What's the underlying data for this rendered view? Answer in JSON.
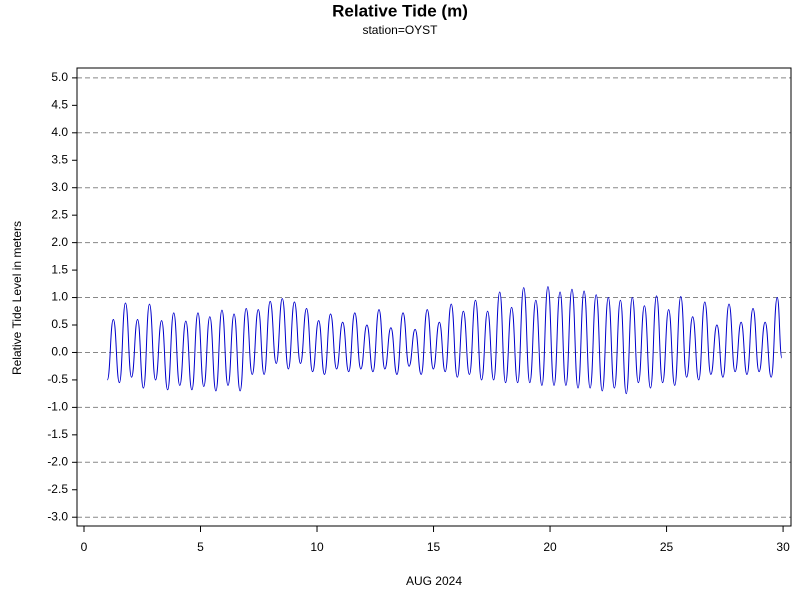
{
  "chart_data": {
    "type": "line",
    "title": "Relative Tide (m)",
    "subtitle": "station=OYST",
    "x_label": "AUG 2024",
    "y_label": "Relative Tide Level in meters",
    "xlim": [
      -0.3,
      30.34
    ],
    "xticks": [
      0,
      5,
      10,
      15,
      20,
      25,
      30
    ],
    "ylim": [
      -3.16,
      5.18
    ],
    "yticks": [
      {
        "value": 5,
        "label": "5.0"
      },
      4.5,
      {
        "value": 4,
        "label": "4.0"
      },
      3.5,
      {
        "value": 3,
        "label": "3.0"
      },
      2.5,
      {
        "value": 2,
        "label": "2.0"
      },
      1.5,
      {
        "value": 1,
        "label": "1.0"
      },
      0.5,
      {
        "value": 0,
        "label": "0.0"
      },
      -0.5,
      {
        "value": -1,
        "label": "-1.0"
      },
      -1.5,
      {
        "value": -2,
        "label": "-2.0"
      },
      -2.5,
      {
        "value": -3,
        "label": "-3.0"
      }
    ],
    "grid": true,
    "series": [
      {
        "name": "Relative Tide",
        "color": "#0000cc",
        "x": [
          1.0,
          1.26,
          1.52,
          1.78,
          2.04,
          2.3,
          2.55,
          2.81,
          3.07,
          3.33,
          3.59,
          3.85,
          4.11,
          4.37,
          4.63,
          4.89,
          5.14,
          5.4,
          5.66,
          5.92,
          6.18,
          6.44,
          6.7,
          6.96,
          7.22,
          7.48,
          7.73,
          7.99,
          8.25,
          8.51,
          8.77,
          9.03,
          9.29,
          9.55,
          9.81,
          10.07,
          10.32,
          10.58,
          10.84,
          11.1,
          11.36,
          11.62,
          11.88,
          12.14,
          12.4,
          12.66,
          12.91,
          13.17,
          13.43,
          13.69,
          13.95,
          14.21,
          14.47,
          14.73,
          14.99,
          15.25,
          15.5,
          15.76,
          16.02,
          16.28,
          16.54,
          16.8,
          17.06,
          17.32,
          17.58,
          17.84,
          18.09,
          18.35,
          18.61,
          18.87,
          19.13,
          19.39,
          19.65,
          19.91,
          20.17,
          20.43,
          20.68,
          20.94,
          21.2,
          21.46,
          21.72,
          21.98,
          22.24,
          22.5,
          22.76,
          23.02,
          23.27,
          23.53,
          23.79,
          24.05,
          24.31,
          24.57,
          24.83,
          25.09,
          25.35,
          25.61,
          25.86,
          26.12,
          26.38,
          26.64,
          26.9,
          27.16,
          27.42,
          27.68,
          27.94,
          28.2,
          28.45,
          28.71,
          28.97,
          29.23,
          29.49,
          29.75,
          29.95
        ],
        "values": [
          -0.5,
          0.6,
          -0.55,
          0.9,
          -0.45,
          0.6,
          -0.65,
          0.88,
          -0.5,
          0.58,
          -0.68,
          0.72,
          -0.6,
          0.57,
          -0.68,
          0.72,
          -0.62,
          0.65,
          -0.7,
          0.77,
          -0.6,
          0.7,
          -0.7,
          0.8,
          -0.4,
          0.78,
          -0.4,
          0.93,
          -0.2,
          0.98,
          -0.3,
          0.92,
          -0.2,
          0.8,
          -0.35,
          0.58,
          -0.4,
          0.7,
          -0.3,
          0.55,
          -0.35,
          0.72,
          -0.3,
          0.5,
          -0.35,
          0.78,
          -0.3,
          0.45,
          -0.4,
          0.72,
          -0.25,
          0.42,
          -0.4,
          0.78,
          -0.3,
          0.55,
          -0.35,
          0.88,
          -0.45,
          0.75,
          -0.4,
          0.95,
          -0.5,
          0.75,
          -0.5,
          1.1,
          -0.55,
          0.82,
          -0.55,
          1.18,
          -0.55,
          0.95,
          -0.6,
          1.2,
          -0.6,
          1.1,
          -0.6,
          1.15,
          -0.65,
          1.12,
          -0.65,
          1.05,
          -0.7,
          1.0,
          -0.65,
          0.95,
          -0.75,
          1.0,
          -0.55,
          0.85,
          -0.65,
          1.03,
          -0.55,
          0.78,
          -0.6,
          1.02,
          -0.45,
          0.65,
          -0.5,
          0.92,
          -0.4,
          0.5,
          -0.45,
          0.88,
          -0.35,
          0.55,
          -0.4,
          0.8,
          -0.35,
          0.55,
          -0.45,
          1.0,
          -0.1
        ]
      }
    ]
  }
}
